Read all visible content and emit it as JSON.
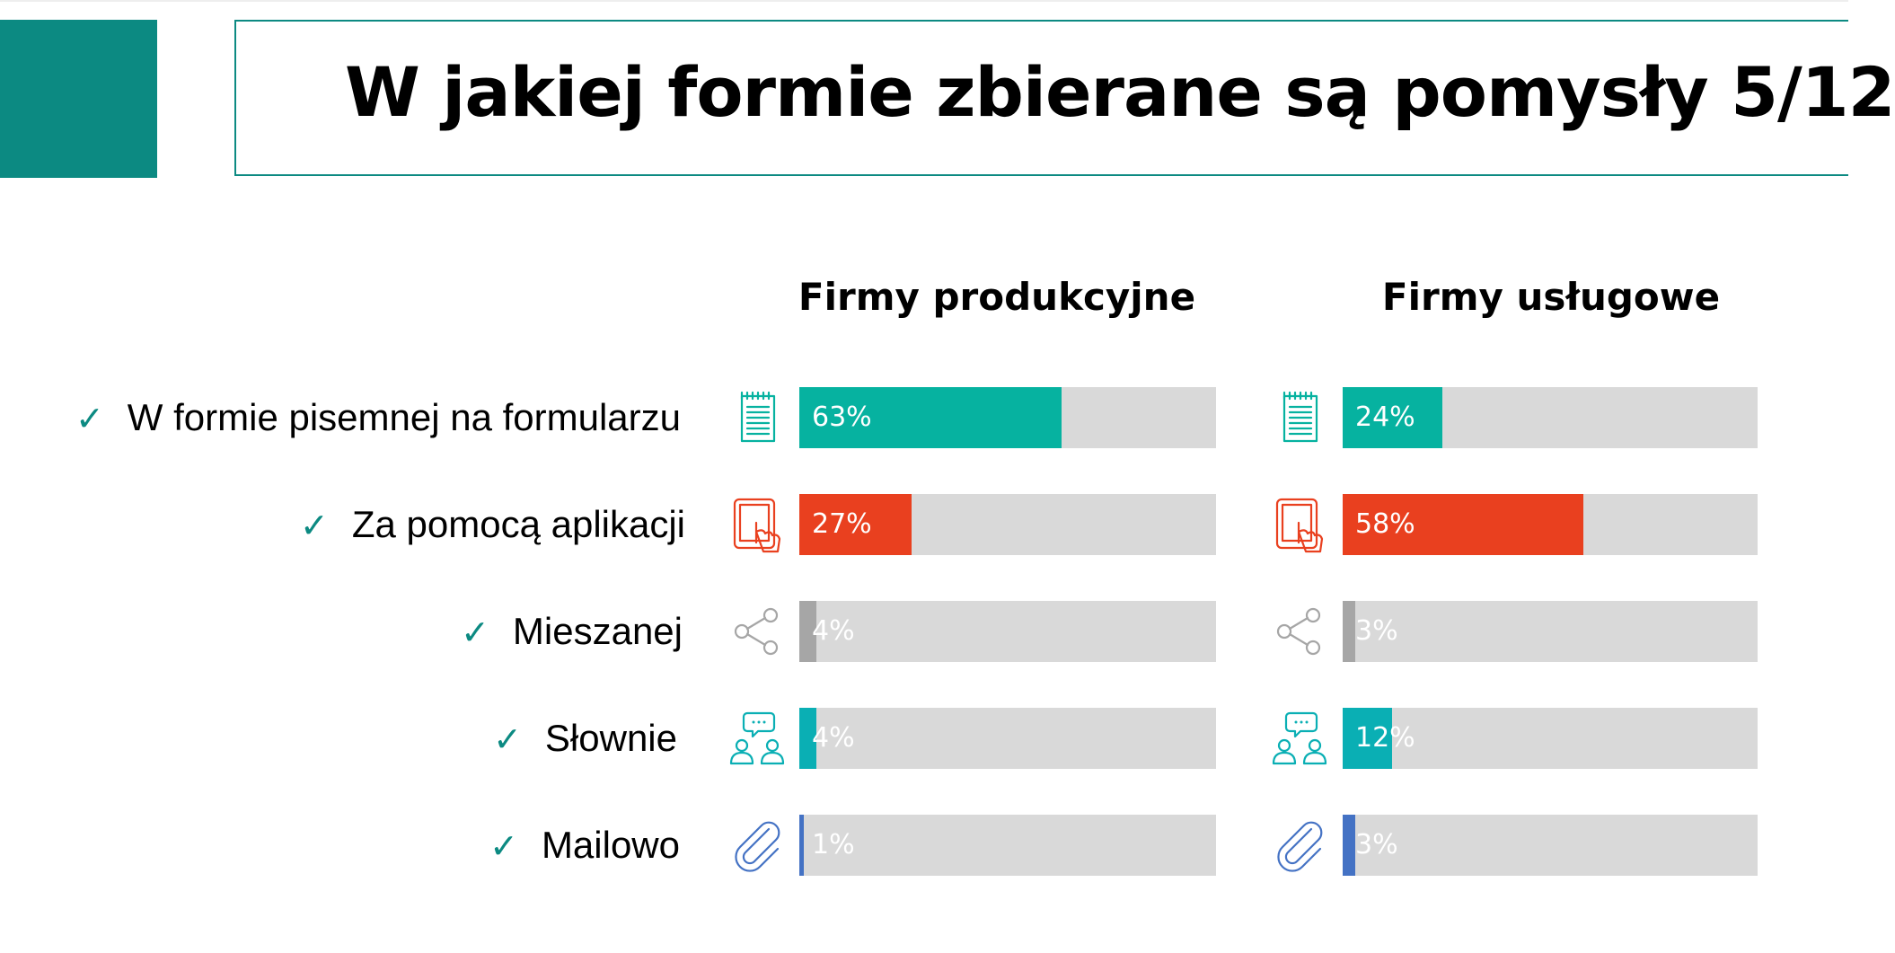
{
  "slide": {
    "title": "W jakiej formie zbierane są pomysły 5/12",
    "accent_color": "#0c8a82"
  },
  "chart_data": {
    "type": "bar",
    "orientation": "horizontal",
    "categories": [
      "W formie pisemnej na formularzu",
      "Za pomocą aplikacji",
      "Mieszanej",
      "Słownie",
      "Mailowo"
    ],
    "series": [
      {
        "name": "Firmy produkcyjne",
        "values": [
          63,
          27,
          4,
          4,
          1
        ]
      },
      {
        "name": "Firmy usługowe",
        "values": [
          24,
          58,
          3,
          12,
          3
        ]
      }
    ],
    "value_labels": [
      [
        "63%",
        "27%",
        "4%",
        "4%",
        "1%"
      ],
      [
        "24%",
        "58%",
        "3%",
        "12%",
        "3%"
      ]
    ],
    "xlim": [
      0,
      100
    ],
    "category_colors": [
      "#06b2a0",
      "#e9401f",
      "#a6a6a6",
      "#0aafb4",
      "#4472c4"
    ],
    "track_color": "#d9d9d9",
    "category_icons": [
      "notepad-icon",
      "tablet-touch-icon",
      "share-icon",
      "people-chat-icon",
      "paperclip-icon"
    ],
    "check_mark": "✓"
  }
}
